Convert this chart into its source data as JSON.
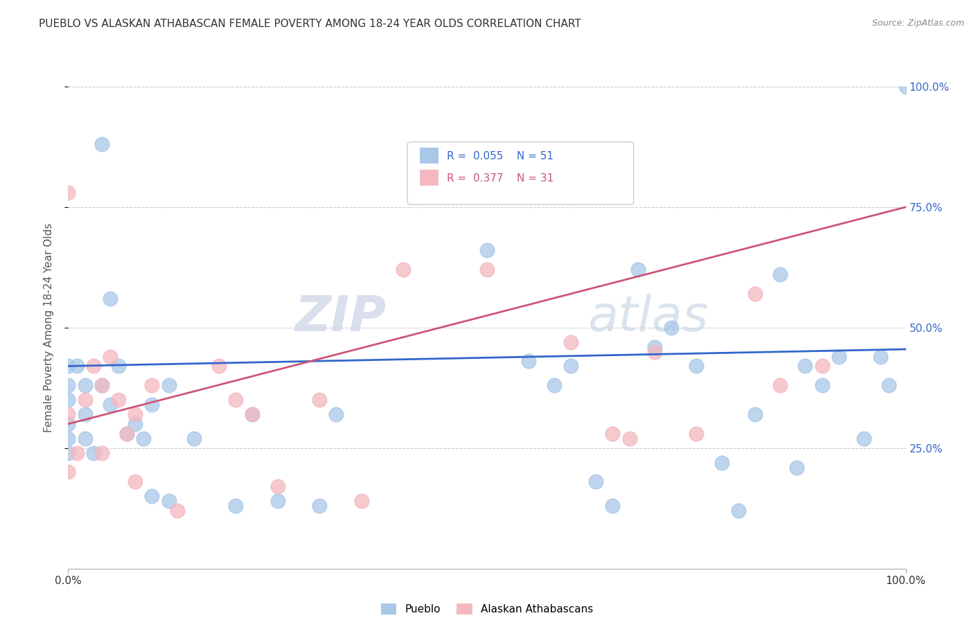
{
  "title": "PUEBLO VS ALASKAN ATHABASCAN FEMALE POVERTY AMONG 18-24 YEAR OLDS CORRELATION CHART",
  "source": "Source: ZipAtlas.com",
  "ylabel": "Female Poverty Among 18-24 Year Olds",
  "ytick_labels": [
    "25.0%",
    "50.0%",
    "75.0%",
    "100.0%"
  ],
  "ytick_values": [
    0.25,
    0.5,
    0.75,
    1.0
  ],
  "legend_pueblo_R": "0.055",
  "legend_pueblo_N": "51",
  "legend_athabascan_R": "0.377",
  "legend_athabascan_N": "31",
  "pueblo_color": "#a8c8e8",
  "athabascan_color": "#f4b8c0",
  "pueblo_line_color": "#3366cc",
  "athabascan_line_color": "#cc5577",
  "background_color": "#ffffff",
  "watermark_zip": "ZIP",
  "watermark_atlas": "atlas",
  "pueblo_x": [
    0.0,
    0.0,
    0.0,
    0.0,
    0.0,
    0.0,
    0.01,
    0.02,
    0.02,
    0.02,
    0.03,
    0.04,
    0.04,
    0.05,
    0.05,
    0.06,
    0.07,
    0.08,
    0.09,
    0.1,
    0.1,
    0.12,
    0.12,
    0.15,
    0.2,
    0.22,
    0.25,
    0.3,
    0.32,
    0.5,
    0.55,
    0.58,
    0.6,
    0.63,
    0.65,
    0.68,
    0.7,
    0.72,
    0.75,
    0.78,
    0.8,
    0.82,
    0.85,
    0.87,
    0.88,
    0.9,
    0.92,
    0.95,
    0.97,
    0.98,
    1.0
  ],
  "pueblo_y": [
    0.42,
    0.38,
    0.35,
    0.3,
    0.27,
    0.24,
    0.42,
    0.38,
    0.32,
    0.27,
    0.24,
    0.88,
    0.38,
    0.34,
    0.56,
    0.42,
    0.28,
    0.3,
    0.27,
    0.15,
    0.34,
    0.14,
    0.38,
    0.27,
    0.13,
    0.32,
    0.14,
    0.13,
    0.32,
    0.66,
    0.43,
    0.38,
    0.42,
    0.18,
    0.13,
    0.62,
    0.46,
    0.5,
    0.42,
    0.22,
    0.12,
    0.32,
    0.61,
    0.21,
    0.42,
    0.38,
    0.44,
    0.27,
    0.44,
    0.38,
    1.0
  ],
  "athabascan_x": [
    0.0,
    0.0,
    0.0,
    0.01,
    0.02,
    0.03,
    0.04,
    0.04,
    0.05,
    0.06,
    0.07,
    0.08,
    0.08,
    0.1,
    0.13,
    0.18,
    0.2,
    0.22,
    0.25,
    0.3,
    0.35,
    0.4,
    0.5,
    0.6,
    0.65,
    0.67,
    0.7,
    0.75,
    0.82,
    0.85,
    0.9
  ],
  "athabascan_y": [
    0.78,
    0.32,
    0.2,
    0.24,
    0.35,
    0.42,
    0.38,
    0.24,
    0.44,
    0.35,
    0.28,
    0.32,
    0.18,
    0.38,
    0.12,
    0.42,
    0.35,
    0.32,
    0.17,
    0.35,
    0.14,
    0.62,
    0.62,
    0.47,
    0.28,
    0.27,
    0.45,
    0.28,
    0.57,
    0.38,
    0.42
  ],
  "pueblo_trendline": [
    0.42,
    0.455
  ],
  "athabascan_trendline": [
    0.3,
    0.75
  ],
  "xlim": [
    0.0,
    1.0
  ],
  "ylim": [
    0.0,
    1.0
  ]
}
